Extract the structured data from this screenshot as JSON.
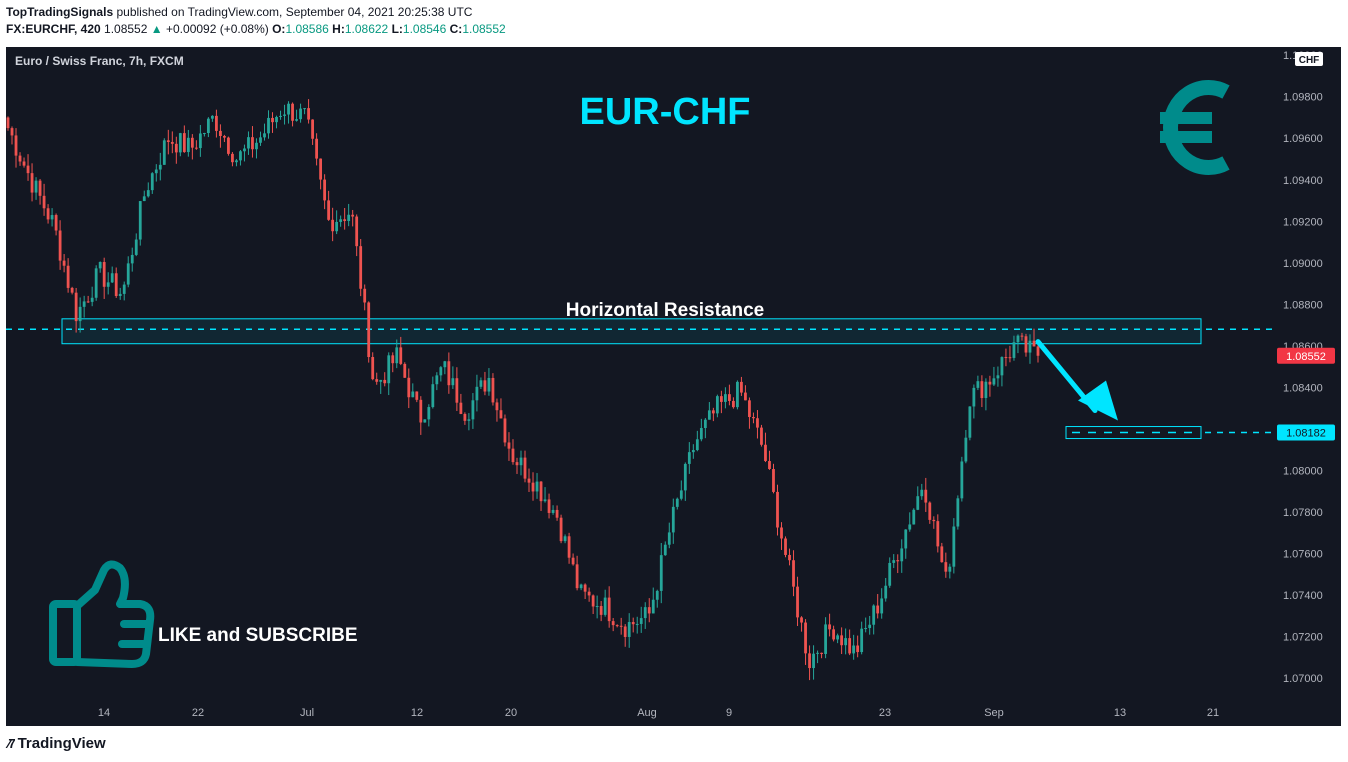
{
  "header": {
    "publisher": "TopTradingSignals",
    "published_text": "published on TradingView.com, September 04, 2021 20:25:38 UTC",
    "symbol": "FX:EURCHF, 420",
    "last": "1.08552",
    "change_arrow": "▲",
    "change": "+0.00092 (+0.08%)",
    "o_label": "O:",
    "o": "1.08586",
    "h_label": "H:",
    "h": "1.08622",
    "l_label": "L:",
    "l": "1.08546",
    "c_label": "C:",
    "c": "1.08552"
  },
  "footer": {
    "brand": "TradingView",
    "logo_icon": "tradingview-logo-icon"
  },
  "colors": {
    "bg": "#131722",
    "up": "#26a69a",
    "down": "#ef5350",
    "cyan": "#00e5ff",
    "accent": "#008b8b"
  },
  "chart_data": {
    "type": "candlestick",
    "legend": "Euro / Swiss Franc, 7h, FXCM",
    "title": "EUR-CHF",
    "currency_label": "CHF",
    "ylim": [
      1.0685,
      1.1003
    ],
    "y_ticks": [
      "1.10000",
      "1.09800",
      "1.09600",
      "1.09400",
      "1.09200",
      "1.09000",
      "1.08800",
      "1.08600",
      "1.08400",
      "1.08200",
      "1.08000",
      "1.07800",
      "1.07600",
      "1.07400",
      "1.07200",
      "1.07000"
    ],
    "x_ticks": [
      "14",
      "22",
      "Jul",
      "12",
      "20",
      "Aug",
      "9",
      "23",
      "Sep",
      "13",
      "21"
    ],
    "price_label": "1.08552",
    "target_label": "1.08182",
    "resistance_zone": [
      1.0861,
      1.0873
    ],
    "resistance_level": 1.0868,
    "target_level": 1.08182,
    "annotations": {
      "resistance": "Horizontal Resistance",
      "cta": "LIKE and SUBSCRIBE",
      "euro_icon": "euro-symbol-icon",
      "thumb_icon": "thumbs-up-icon"
    },
    "key_closes": [
      1.0965,
      1.094,
      1.0918,
      1.0875,
      1.0895,
      1.0885,
      1.0935,
      1.096,
      1.0955,
      1.097,
      1.095,
      1.096,
      1.0975,
      1.097,
      1.092,
      1.0925,
      1.084,
      1.0855,
      1.0825,
      1.085,
      1.0828,
      1.0845,
      1.0808,
      1.0795,
      1.0778,
      1.074,
      1.0735,
      1.0725,
      1.073,
      1.0775,
      1.0813,
      1.083,
      1.0838,
      1.081,
      1.0758,
      1.0708,
      1.0725,
      1.0712,
      1.0735,
      1.0765,
      1.0795,
      1.0745,
      1.0835,
      1.0845,
      1.0861,
      1.0855
    ]
  }
}
